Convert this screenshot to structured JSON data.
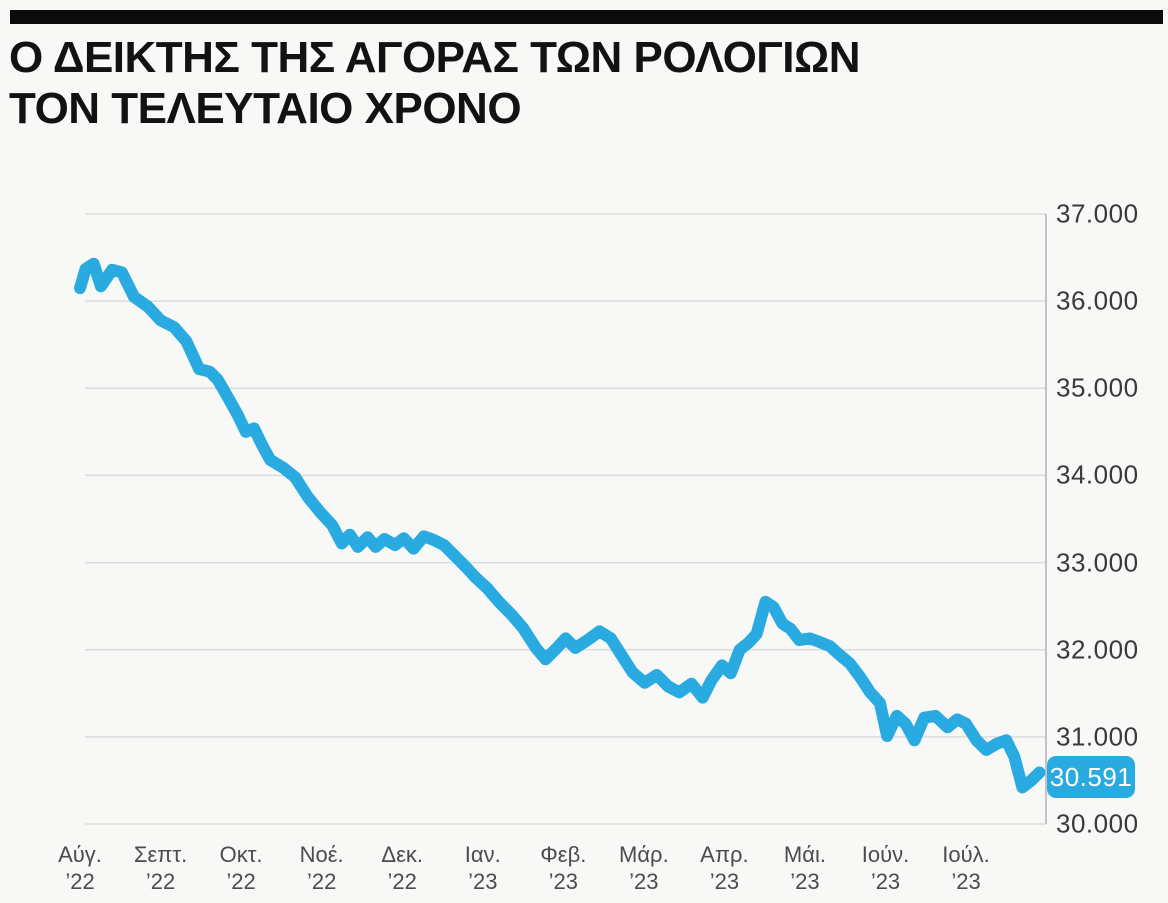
{
  "title": {
    "line1": "Ο ΔΕΙΚΤΗΣ ΤΗΣ ΑΓΟΡΑΣ ΤΩΝ ΡΟΛΟΓΙΩΝ",
    "line2": "ΤΟΝ ΤΕΛΕΥΤΑΙΟ ΧΡΟΝΟ"
  },
  "colors": {
    "line": "#29abe2",
    "badge": "#29abe2",
    "grid": "#dcdcdc",
    "axis": "#c4c4c4",
    "title_text": "#121212",
    "top_bar": "#0b0b0b"
  },
  "chart_data": {
    "type": "line",
    "title": "Ο ΔΕΙΚΤΗΣ ΤΗΣ ΑΓΟΡΑΣ ΤΩΝ ΡΟΛΟΓΙΩΝ ΤΟΝ ΤΕΛΕΥΤΑΙΟ ΧΡΟΝΟ",
    "grid": "horizontal",
    "legend": "none",
    "y_axis": {
      "side": "right",
      "ylim": [
        30000,
        37000
      ],
      "tick_values": [
        37000,
        36000,
        35000,
        34000,
        33000,
        32000,
        31000,
        30000
      ],
      "tick_labels": [
        "37.000",
        "36.000",
        "35.000",
        "34.000",
        "33.000",
        "32.000",
        "31.000",
        "30.000"
      ]
    },
    "x_axis": {
      "months": [
        {
          "label": "Αύγ.",
          "year": "’22"
        },
        {
          "label": "Σεπτ.",
          "year": "’22"
        },
        {
          "label": "Οκτ.",
          "year": "’22"
        },
        {
          "label": "Νοέ.",
          "year": "’22"
        },
        {
          "label": "Δεκ.",
          "year": "’22"
        },
        {
          "label": "Ιαν.",
          "year": "’23"
        },
        {
          "label": "Φεβ.",
          "year": "’23"
        },
        {
          "label": "Μάρ.",
          "year": "’23"
        },
        {
          "label": "Απρ.",
          "year": "’23"
        },
        {
          "label": "Μάι.",
          "year": "’23"
        },
        {
          "label": "Ιούν.",
          "year": "’23"
        },
        {
          "label": "Ιούλ.",
          "year": "’23"
        }
      ]
    },
    "end_label": {
      "text": "30.591",
      "value": 30591
    },
    "series": [
      {
        "color": "#29abe2",
        "points": [
          [
            0.0,
            36150
          ],
          [
            0.07,
            36370
          ],
          [
            0.17,
            36430
          ],
          [
            0.26,
            36170
          ],
          [
            0.4,
            36360
          ],
          [
            0.52,
            36330
          ],
          [
            0.67,
            36050
          ],
          [
            0.84,
            35940
          ],
          [
            1.0,
            35780
          ],
          [
            1.17,
            35700
          ],
          [
            1.32,
            35540
          ],
          [
            1.48,
            35220
          ],
          [
            1.61,
            35190
          ],
          [
            1.71,
            35100
          ],
          [
            1.84,
            34890
          ],
          [
            1.96,
            34690
          ],
          [
            2.06,
            34500
          ],
          [
            2.16,
            34540
          ],
          [
            2.26,
            34350
          ],
          [
            2.36,
            34180
          ],
          [
            2.52,
            34090
          ],
          [
            2.67,
            33980
          ],
          [
            2.83,
            33750
          ],
          [
            2.98,
            33580
          ],
          [
            3.13,
            33430
          ],
          [
            3.25,
            33220
          ],
          [
            3.35,
            33320
          ],
          [
            3.45,
            33180
          ],
          [
            3.57,
            33290
          ],
          [
            3.67,
            33180
          ],
          [
            3.78,
            33270
          ],
          [
            3.91,
            33200
          ],
          [
            4.02,
            33280
          ],
          [
            4.14,
            33160
          ],
          [
            4.27,
            33300
          ],
          [
            4.39,
            33260
          ],
          [
            4.52,
            33200
          ],
          [
            4.65,
            33080
          ],
          [
            4.78,
            32960
          ],
          [
            4.91,
            32830
          ],
          [
            5.05,
            32710
          ],
          [
            5.2,
            32550
          ],
          [
            5.35,
            32410
          ],
          [
            5.5,
            32250
          ],
          [
            5.66,
            32020
          ],
          [
            5.78,
            31890
          ],
          [
            5.91,
            32010
          ],
          [
            6.03,
            32130
          ],
          [
            6.15,
            32020
          ],
          [
            6.3,
            32110
          ],
          [
            6.45,
            32210
          ],
          [
            6.59,
            32130
          ],
          [
            6.72,
            31940
          ],
          [
            6.86,
            31740
          ],
          [
            7.01,
            31620
          ],
          [
            7.16,
            31710
          ],
          [
            7.3,
            31580
          ],
          [
            7.44,
            31510
          ],
          [
            7.59,
            31610
          ],
          [
            7.73,
            31450
          ],
          [
            7.84,
            31650
          ],
          [
            7.97,
            31820
          ],
          [
            8.08,
            31730
          ],
          [
            8.19,
            32000
          ],
          [
            8.3,
            32080
          ],
          [
            8.4,
            32180
          ],
          [
            8.51,
            32550
          ],
          [
            8.61,
            32490
          ],
          [
            8.72,
            32300
          ],
          [
            8.82,
            32240
          ],
          [
            8.93,
            32110
          ],
          [
            9.06,
            32130
          ],
          [
            9.18,
            32090
          ],
          [
            9.31,
            32040
          ],
          [
            9.43,
            31940
          ],
          [
            9.56,
            31840
          ],
          [
            9.69,
            31680
          ],
          [
            9.81,
            31510
          ],
          [
            9.93,
            31390
          ],
          [
            10.02,
            31010
          ],
          [
            10.14,
            31240
          ],
          [
            10.25,
            31150
          ],
          [
            10.36,
            30960
          ],
          [
            10.48,
            31220
          ],
          [
            10.62,
            31240
          ],
          [
            10.77,
            31110
          ],
          [
            10.89,
            31200
          ],
          [
            11.0,
            31150
          ],
          [
            11.13,
            30960
          ],
          [
            11.25,
            30850
          ],
          [
            11.38,
            30920
          ],
          [
            11.5,
            30960
          ],
          [
            11.6,
            30770
          ],
          [
            11.7,
            30420
          ],
          [
            11.81,
            30500
          ],
          [
            11.91,
            30591
          ]
        ]
      }
    ]
  }
}
